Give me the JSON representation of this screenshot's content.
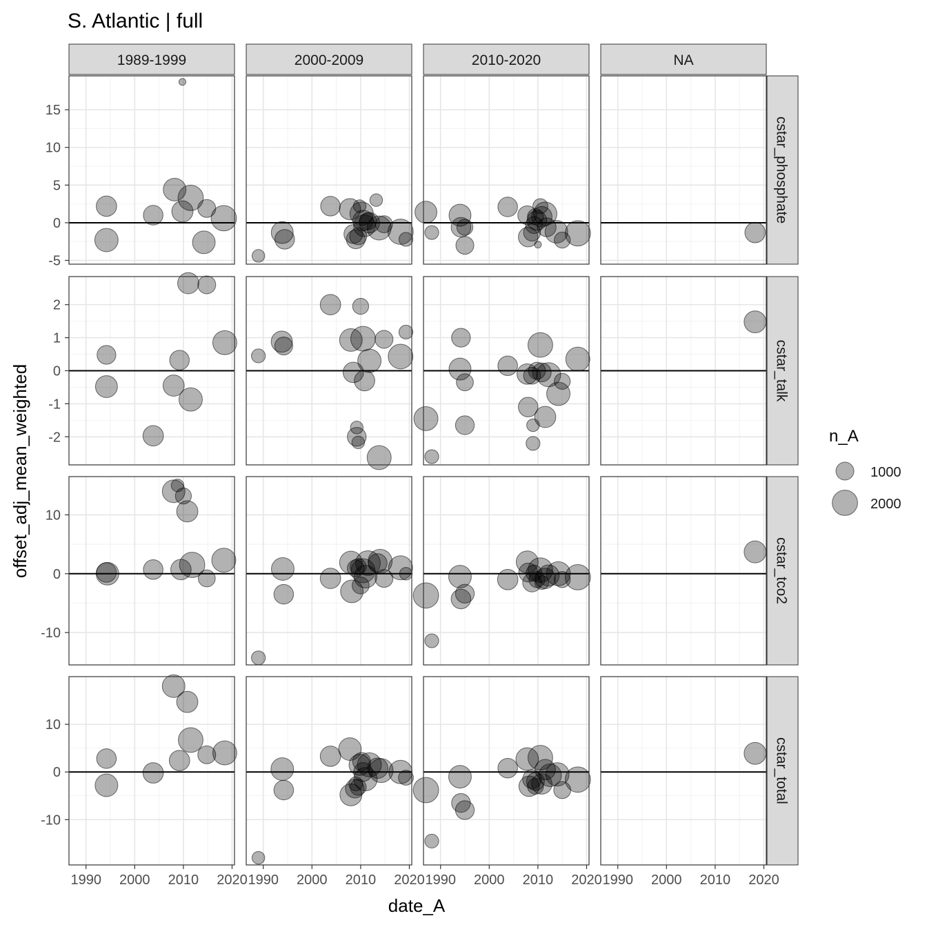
{
  "chart_data": {
    "type": "scatter",
    "title": "S. Atlantic | full",
    "xlabel": "date_A",
    "ylabel": "offset_adj_mean_weighted",
    "x_ticks": [
      1990,
      2000,
      2010,
      2020
    ],
    "xlim": [
      1986.5,
      2020.5
    ],
    "col_facets": [
      "1989-1999",
      "2000-2009",
      "2010-2020",
      "NA"
    ],
    "row_facets": [
      {
        "label": "cstar_phosphate",
        "ylim": [
          -5.5,
          19.5
        ],
        "ticks": [
          -5,
          0,
          5,
          10,
          15
        ]
      },
      {
        "label": "cstar_talk",
        "ylim": [
          -2.85,
          2.85
        ],
        "ticks": [
          -2,
          -1,
          0,
          1,
          2
        ]
      },
      {
        "label": "cstar_tco2",
        "ylim": [
          -15.5,
          16.5
        ],
        "ticks": [
          -10,
          0,
          10
        ]
      },
      {
        "label": "cstar_total",
        "ylim": [
          -19.5,
          20
        ],
        "ticks": [
          -10,
          0,
          10
        ]
      }
    ],
    "reference_line_y": 0,
    "grid": true,
    "point_color": "#000000",
    "point_opacity": 0.3,
    "legend": {
      "title": "n_A",
      "position": "right",
      "entries": [
        1000,
        2000
      ]
    },
    "size_scale": {
      "n_ref": 1000,
      "r_ref": 13,
      "n_max": 2600
    },
    "panels": [
      {
        "row": 0,
        "col": 0,
        "points": [
          [
            1994.2,
            2.2,
            1300
          ],
          [
            1994.2,
            -2.3,
            1700
          ],
          [
            2003.8,
            1.0,
            1200
          ],
          [
            2008.2,
            4.4,
            1600
          ],
          [
            2009.8,
            18.7,
            150
          ],
          [
            2009.8,
            1.5,
            1400
          ],
          [
            2011.5,
            3.3,
            2000
          ],
          [
            2014.8,
            1.9,
            1000
          ],
          [
            2014.2,
            -2.6,
            1600
          ],
          [
            2018.3,
            0.6,
            2000
          ]
        ]
      },
      {
        "row": 0,
        "col": 1,
        "points": [
          [
            1989.0,
            -4.4,
            500
          ],
          [
            1993.9,
            -1.3,
            1500
          ],
          [
            1994.4,
            -2.2,
            1200
          ],
          [
            2003.8,
            2.2,
            1200
          ],
          [
            2007.8,
            1.8,
            1400
          ],
          [
            2008.5,
            -1.5,
            1100
          ],
          [
            2009.0,
            -2.2,
            1100
          ],
          [
            2009.5,
            -1.8,
            900
          ],
          [
            2009.8,
            2.2,
            500
          ],
          [
            2010.2,
            1.2,
            1700
          ],
          [
            2010.5,
            0.3,
            1300
          ],
          [
            2010.8,
            -0.4,
            1500
          ],
          [
            2011.5,
            0.2,
            900
          ],
          [
            2011.8,
            0.0,
            1300
          ],
          [
            2013.2,
            3.0,
            500
          ],
          [
            2013.8,
            -0.7,
            1800
          ],
          [
            2014.8,
            -0.2,
            900
          ],
          [
            2018.2,
            -1.2,
            2000
          ],
          [
            2019.3,
            -2.2,
            600
          ]
        ]
      },
      {
        "row": 0,
        "col": 2,
        "points": [
          [
            1987.0,
            1.4,
            1500
          ],
          [
            1988.2,
            -1.3,
            600
          ],
          [
            1994.0,
            1.0,
            1500
          ],
          [
            1994.2,
            -0.6,
            1200
          ],
          [
            1995.0,
            -0.6,
            800
          ],
          [
            1995.0,
            -3.0,
            1000
          ],
          [
            2003.8,
            2.1,
            1200
          ],
          [
            2007.8,
            1.0,
            1100
          ],
          [
            2008.0,
            -1.9,
            1200
          ],
          [
            2008.8,
            -1.3,
            900
          ],
          [
            2009.2,
            -0.3,
            900
          ],
          [
            2009.5,
            0.8,
            800
          ],
          [
            2009.8,
            0.3,
            1200
          ],
          [
            2010.0,
            -2.9,
            150
          ],
          [
            2010.5,
            2.2,
            700
          ],
          [
            2010.8,
            0.8,
            1300
          ],
          [
            2011.5,
            1.2,
            1700
          ],
          [
            2011.8,
            -0.6,
            1100
          ],
          [
            2013.8,
            -1.2,
            1600
          ],
          [
            2015.0,
            -2.3,
            800
          ],
          [
            2018.2,
            -1.4,
            2000
          ]
        ]
      },
      {
        "row": 0,
        "col": 3,
        "points": [
          [
            2018.2,
            -1.3,
            1300
          ]
        ]
      },
      {
        "row": 1,
        "col": 0,
        "points": [
          [
            1994.2,
            0.48,
            1100
          ],
          [
            1994.2,
            -0.48,
            1500
          ],
          [
            2003.8,
            -1.97,
            1300
          ],
          [
            2008.0,
            -0.45,
            1400
          ],
          [
            2009.2,
            0.32,
            1200
          ],
          [
            2011.0,
            2.65,
            1400
          ],
          [
            2011.5,
            -0.87,
            1700
          ],
          [
            2014.8,
            2.6,
            1000
          ],
          [
            2018.5,
            0.85,
            1800
          ]
        ]
      },
      {
        "row": 1,
        "col": 1,
        "points": [
          [
            1989.0,
            0.45,
            600
          ],
          [
            1993.8,
            0.88,
            1400
          ],
          [
            1994.2,
            0.75,
            1000
          ],
          [
            2003.8,
            2.0,
            1300
          ],
          [
            2008.0,
            0.93,
            1600
          ],
          [
            2008.5,
            -0.05,
            1300
          ],
          [
            2009.2,
            -1.72,
            500
          ],
          [
            2009.2,
            -2.0,
            1100
          ],
          [
            2009.5,
            -2.17,
            500
          ],
          [
            2010.0,
            1.95,
            800
          ],
          [
            2010.5,
            0.97,
            1900
          ],
          [
            2010.8,
            -0.3,
            1300
          ],
          [
            2011.8,
            0.3,
            1700
          ],
          [
            2013.8,
            -2.63,
            1800
          ],
          [
            2014.8,
            0.95,
            1000
          ],
          [
            2018.2,
            0.43,
            1900
          ],
          [
            2019.3,
            1.17,
            600
          ]
        ]
      },
      {
        "row": 1,
        "col": 2,
        "points": [
          [
            1987.0,
            -1.45,
            1800
          ],
          [
            1988.2,
            -2.6,
            600
          ],
          [
            1994.0,
            0.05,
            1500
          ],
          [
            1994.2,
            1.0,
            1100
          ],
          [
            1995.0,
            -0.35,
            900
          ],
          [
            1995.0,
            -1.65,
            1100
          ],
          [
            2003.8,
            0.15,
            1200
          ],
          [
            2007.8,
            -0.1,
            1300
          ],
          [
            2008.0,
            -1.1,
            1200
          ],
          [
            2008.8,
            -0.15,
            900
          ],
          [
            2009.0,
            -1.65,
            500
          ],
          [
            2009.0,
            -2.2,
            600
          ],
          [
            2009.8,
            0.0,
            900
          ],
          [
            2010.5,
            0.78,
            1900
          ],
          [
            2010.8,
            -0.05,
            1100
          ],
          [
            2011.5,
            -1.4,
            1400
          ],
          [
            2012.2,
            -0.12,
            1800
          ],
          [
            2014.2,
            -0.7,
            1700
          ],
          [
            2015.0,
            -0.32,
            800
          ],
          [
            2018.2,
            0.35,
            1800
          ]
        ]
      },
      {
        "row": 1,
        "col": 3,
        "points": [
          [
            2018.2,
            1.48,
            1500
          ]
        ]
      },
      {
        "row": 2,
        "col": 0,
        "points": [
          [
            1994.2,
            0.2,
            1200
          ],
          [
            1994.4,
            0.0,
            1600
          ],
          [
            2003.8,
            0.7,
            1200
          ],
          [
            2008.0,
            14.0,
            1600
          ],
          [
            2008.8,
            15.0,
            500
          ],
          [
            2010.0,
            13.2,
            800
          ],
          [
            2010.8,
            10.6,
            1400
          ],
          [
            2009.5,
            0.7,
            1300
          ],
          [
            2011.8,
            1.5,
            2000
          ],
          [
            2014.8,
            -0.8,
            900
          ],
          [
            2018.3,
            2.3,
            1800
          ]
        ]
      },
      {
        "row": 2,
        "col": 1,
        "points": [
          [
            1989.0,
            -14.3,
            600
          ],
          [
            1994.0,
            0.8,
            1600
          ],
          [
            1994.2,
            -3.5,
            1200
          ],
          [
            2003.8,
            -0.8,
            1300
          ],
          [
            2008.0,
            1.9,
            1600
          ],
          [
            2008.2,
            -3.0,
            1600
          ],
          [
            2009.0,
            0.9,
            900
          ],
          [
            2009.5,
            1.2,
            800
          ],
          [
            2010.0,
            -2.0,
            900
          ],
          [
            2010.5,
            0.5,
            1800
          ],
          [
            2011.0,
            -0.5,
            1600
          ],
          [
            2011.5,
            1.8,
            1900
          ],
          [
            2013.5,
            1.8,
            1100
          ],
          [
            2014.0,
            2.1,
            1800
          ],
          [
            2014.8,
            -0.8,
            1000
          ],
          [
            2018.2,
            1.0,
            1800
          ],
          [
            2019.3,
            0.0,
            500
          ]
        ]
      },
      {
        "row": 2,
        "col": 2,
        "points": [
          [
            1987.0,
            -3.7,
            2000
          ],
          [
            1988.2,
            -11.4,
            600
          ],
          [
            1994.0,
            -0.5,
            1600
          ],
          [
            1994.2,
            -4.3,
            1200
          ],
          [
            1995.0,
            -3.4,
            1100
          ],
          [
            2003.8,
            -1.0,
            1300
          ],
          [
            2007.8,
            2.0,
            1500
          ],
          [
            2008.0,
            0.2,
            1100
          ],
          [
            2008.8,
            -1.5,
            1100
          ],
          [
            2009.2,
            0.1,
            800
          ],
          [
            2009.8,
            -1.0,
            800
          ],
          [
            2010.5,
            0.6,
            1900
          ],
          [
            2010.8,
            -1.5,
            600
          ],
          [
            2011.5,
            -0.8,
            1300
          ],
          [
            2012.2,
            -0.3,
            1400
          ],
          [
            2014.2,
            0.0,
            1800
          ],
          [
            2015.0,
            -1.0,
            800
          ],
          [
            2018.2,
            -0.6,
            2000
          ]
        ]
      },
      {
        "row": 2,
        "col": 3,
        "points": [
          [
            2018.2,
            3.7,
            1500
          ]
        ]
      },
      {
        "row": 3,
        "col": 0,
        "points": [
          [
            1994.2,
            2.8,
            1200
          ],
          [
            1994.2,
            -2.8,
            1600
          ],
          [
            2003.8,
            -0.2,
            1300
          ],
          [
            2008.0,
            18.0,
            1600
          ],
          [
            2009.2,
            2.4,
            1300
          ],
          [
            2010.8,
            14.7,
            1400
          ],
          [
            2011.5,
            6.7,
            1900
          ],
          [
            2014.8,
            3.6,
            1000
          ],
          [
            2018.5,
            4.0,
            1800
          ]
        ]
      },
      {
        "row": 3,
        "col": 1,
        "points": [
          [
            1989.0,
            -18.0,
            500
          ],
          [
            1993.9,
            0.6,
            1600
          ],
          [
            1994.2,
            -3.8,
            1200
          ],
          [
            2003.8,
            3.3,
            1300
          ],
          [
            2007.8,
            4.8,
            1600
          ],
          [
            2008.0,
            -4.8,
            1500
          ],
          [
            2008.8,
            -3.5,
            1100
          ],
          [
            2009.0,
            -2.5,
            600
          ],
          [
            2009.5,
            -3.2,
            800
          ],
          [
            2009.8,
            1.5,
            1400
          ],
          [
            2010.2,
            2.2,
            1000
          ],
          [
            2010.5,
            0.0,
            1100
          ],
          [
            2011.0,
            -1.5,
            1700
          ],
          [
            2011.8,
            1.5,
            1800
          ],
          [
            2013.5,
            0.8,
            1300
          ],
          [
            2014.2,
            0.3,
            1800
          ],
          [
            2018.2,
            0.0,
            1700
          ],
          [
            2019.3,
            -1.2,
            700
          ]
        ]
      },
      {
        "row": 3,
        "col": 2,
        "points": [
          [
            1987.0,
            -3.8,
            2000
          ],
          [
            1988.2,
            -14.5,
            600
          ],
          [
            1994.0,
            -1.0,
            1600
          ],
          [
            1994.2,
            -6.5,
            1100
          ],
          [
            1995.0,
            -8.0,
            1100
          ],
          [
            2003.8,
            0.8,
            1200
          ],
          [
            2007.8,
            2.7,
            1600
          ],
          [
            2008.2,
            -3.0,
            1300
          ],
          [
            2008.8,
            -1.5,
            1100
          ],
          [
            2009.5,
            -2.0,
            1000
          ],
          [
            2009.5,
            -3.0,
            800
          ],
          [
            2010.5,
            3.0,
            1900
          ],
          [
            2010.8,
            -2.5,
            1300
          ],
          [
            2011.5,
            0.5,
            1300
          ],
          [
            2012.5,
            -0.7,
            1600
          ],
          [
            2014.0,
            -0.5,
            1700
          ],
          [
            2015.0,
            -3.8,
            900
          ],
          [
            2018.2,
            -1.6,
            2000
          ]
        ]
      },
      {
        "row": 3,
        "col": 3,
        "points": [
          [
            2018.2,
            3.9,
            1500
          ]
        ]
      }
    ]
  }
}
